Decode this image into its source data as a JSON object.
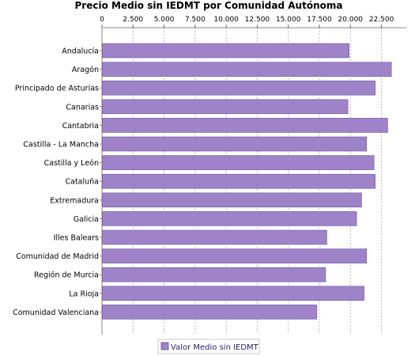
{
  "chart_data": {
    "type": "bar",
    "orientation": "horizontal",
    "title": "Precio Medio sin IEDMT por Comunidad Autónoma",
    "xlabel": "",
    "ylabel": "",
    "xlim": [
      0,
      24500
    ],
    "ticks": [
      0,
      2500,
      5000,
      7500,
      10000,
      12500,
      15000,
      17500,
      20000,
      22500
    ],
    "tick_labels": [
      "0",
      "2.500",
      "5.000",
      "7.500",
      "10.000",
      "12.500",
      "15.000",
      "17.500",
      "20.000",
      "22.500"
    ],
    "tick_position": "top",
    "grid": true,
    "legend_position": "bottom",
    "categories": [
      "Andalucía",
      "Aragón",
      "Principado de Asturias",
      "Canarias",
      "Cantabria",
      "Castilla - La Mancha",
      "Castilla y León",
      "Cataluña",
      "Extremadura",
      "Galicia",
      "Illes Balears",
      "Comunidad de Madrid",
      "Región de Murcia",
      "La Rioja",
      "Comunidad Valenciana"
    ],
    "series": [
      {
        "name": "Valor Medio sin IEDMT",
        "color": "#9f83c8",
        "values": [
          19900,
          23300,
          22000,
          19800,
          23000,
          21300,
          21900,
          22000,
          20900,
          20500,
          18100,
          21300,
          18000,
          21100,
          17300
        ]
      }
    ]
  }
}
